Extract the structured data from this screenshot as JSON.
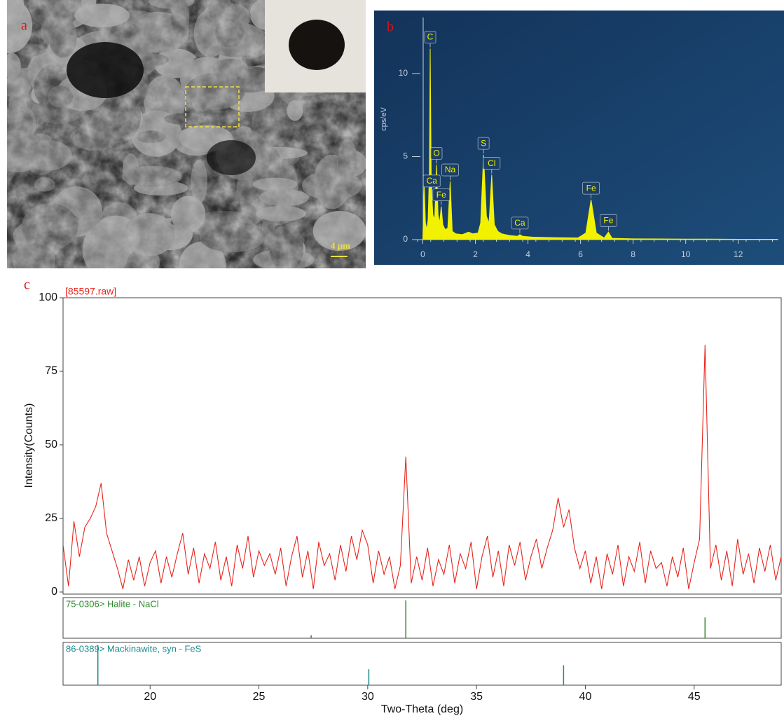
{
  "image_panel": {
    "panel_label": "a",
    "scale_bar": "4 μm"
  },
  "chart_data": [
    {
      "type": "spectrum",
      "panel_label": "b",
      "ylabel": "cps/eV",
      "color": "#f2f200",
      "xlim": [
        -0.2,
        13.5
      ],
      "ylim": [
        0,
        13.8
      ],
      "xticks": [
        0,
        2,
        4,
        6,
        8,
        10,
        12
      ],
      "yticks": [
        0,
        5,
        10
      ],
      "x": [
        0,
        0.05,
        0.1,
        0.15,
        0.2,
        0.25,
        0.28,
        0.32,
        0.38,
        0.45,
        0.52,
        0.58,
        0.64,
        0.7,
        0.76,
        0.85,
        0.95,
        1.04,
        1.12,
        1.25,
        1.5,
        1.74,
        1.9,
        2.1,
        2.2,
        2.31,
        2.42,
        2.52,
        2.62,
        2.72,
        2.85,
        3.0,
        3.3,
        3.6,
        3.69,
        3.8,
        4.2,
        5.0,
        5.9,
        6.2,
        6.4,
        6.6,
        6.9,
        7.06,
        7.2,
        8,
        9,
        10,
        11,
        12,
        13.5
      ],
      "values": [
        0,
        3.3,
        1.0,
        0.6,
        1.2,
        4.0,
        11.5,
        3.5,
        1.5,
        1.2,
        4.5,
        1.5,
        1.0,
        2.0,
        0.9,
        0.6,
        0.7,
        3.5,
        0.5,
        0.35,
        0.3,
        0.45,
        0.35,
        0.4,
        1.0,
        5.1,
        1.4,
        1.0,
        3.9,
        0.9,
        0.5,
        0.35,
        0.25,
        0.2,
        0.3,
        0.2,
        0.15,
        0.12,
        0.1,
        0.4,
        2.4,
        0.4,
        0.1,
        0.45,
        0.08,
        0.05,
        0.04,
        0.03,
        0.03,
        0.02,
        0.02
      ],
      "peak_labels": [
        {
          "text": "C",
          "energy": 0.28
        },
        {
          "text": "O",
          "energy": 0.52
        },
        {
          "text": "Na",
          "energy": 1.04
        },
        {
          "text": "Fe",
          "energy": 0.7
        },
        {
          "text": "Ca",
          "energy": 0.34
        },
        {
          "text": "S",
          "energy": 2.31
        },
        {
          "text": "Cl",
          "energy": 2.62
        },
        {
          "text": "Ca",
          "energy": 3.69
        },
        {
          "text": "Fe",
          "energy": 6.4
        },
        {
          "text": "Fe",
          "energy": 7.06
        }
      ]
    },
    {
      "type": "xrd",
      "panel_label": "c",
      "title": "[85597.raw]",
      "xlabel": "Two-Theta (deg)",
      "ylabel": "Intensity(Counts)",
      "color": "#e8241c",
      "xlim": [
        16,
        49
      ],
      "ylim": [
        0,
        100
      ],
      "xticks": [
        20,
        25,
        30,
        35,
        40,
        45
      ],
      "yticks": [
        0,
        25,
        50,
        75,
        100
      ],
      "x": [
        16,
        16.25,
        16.5,
        16.75,
        17,
        17.25,
        17.5,
        17.75,
        18,
        18.25,
        18.5,
        18.75,
        19,
        19.25,
        19.5,
        19.75,
        20,
        20.25,
        20.5,
        20.75,
        21,
        21.25,
        21.5,
        21.75,
        22,
        22.25,
        22.5,
        22.75,
        23,
        23.25,
        23.5,
        23.75,
        24,
        24.25,
        24.5,
        24.75,
        25,
        25.25,
        25.5,
        25.75,
        26,
        26.25,
        26.5,
        26.75,
        27,
        27.25,
        27.5,
        27.75,
        28,
        28.25,
        28.5,
        28.75,
        29,
        29.25,
        29.5,
        29.75,
        30,
        30.25,
        30.5,
        30.75,
        31,
        31.25,
        31.5,
        31.75,
        32,
        32.25,
        32.5,
        32.75,
        33,
        33.25,
        33.5,
        33.75,
        34,
        34.25,
        34.5,
        34.75,
        35,
        35.25,
        35.5,
        35.75,
        36,
        36.25,
        36.5,
        36.75,
        37,
        37.25,
        37.5,
        37.75,
        38,
        38.25,
        38.5,
        38.75,
        39,
        39.25,
        39.5,
        39.75,
        40,
        40.25,
        40.5,
        40.75,
        41,
        41.25,
        41.5,
        41.75,
        42,
        42.25,
        42.5,
        42.75,
        43,
        43.25,
        43.5,
        43.75,
        44,
        44.25,
        44.5,
        44.75,
        45,
        45.25,
        45.5,
        45.75,
        46,
        46.25,
        46.5,
        46.75,
        47,
        47.25,
        47.5,
        47.75,
        48,
        48.25,
        48.5,
        48.75,
        49
      ],
      "values": [
        16,
        2,
        24,
        12,
        22,
        25,
        29,
        37,
        20,
        14,
        8,
        1,
        11,
        4,
        12,
        2,
        10,
        14,
        3,
        12,
        5,
        13,
        20,
        6,
        15,
        3,
        13,
        8,
        17,
        4,
        12,
        2,
        16,
        8,
        19,
        5,
        14,
        9,
        13,
        6,
        15,
        2,
        12,
        19,
        5,
        14,
        1,
        17,
        9,
        13,
        4,
        16,
        7,
        19,
        11,
        21,
        16,
        3,
        14,
        6,
        12,
        1,
        9,
        46,
        3,
        12,
        4,
        15,
        2,
        11,
        6,
        16,
        3,
        13,
        8,
        17,
        1,
        12,
        19,
        5,
        14,
        2,
        16,
        9,
        17,
        4,
        12,
        18,
        8,
        15,
        21,
        32,
        22,
        28,
        15,
        8,
        14,
        3,
        12,
        1,
        13,
        6,
        16,
        2,
        12,
        7,
        17,
        3,
        14,
        8,
        10,
        2,
        12,
        5,
        15,
        1,
        10,
        18,
        84,
        8,
        16,
        4,
        14,
        2,
        18,
        6,
        13,
        3,
        15,
        7,
        16,
        4,
        12
      ],
      "references": [
        {
          "name": "75-0306> Halite - NaCl",
          "color": "#2e8b2e",
          "x": [
            27.4,
            31.75,
            45.5
          ],
          "values": [
            8,
            100,
            55
          ]
        },
        {
          "name": "86-0389> Mackinawite, syn - FeS",
          "color": "#1a8a8a",
          "x": [
            17.6,
            30.05,
            39.0
          ],
          "values": [
            100,
            40,
            50
          ]
        }
      ]
    }
  ]
}
